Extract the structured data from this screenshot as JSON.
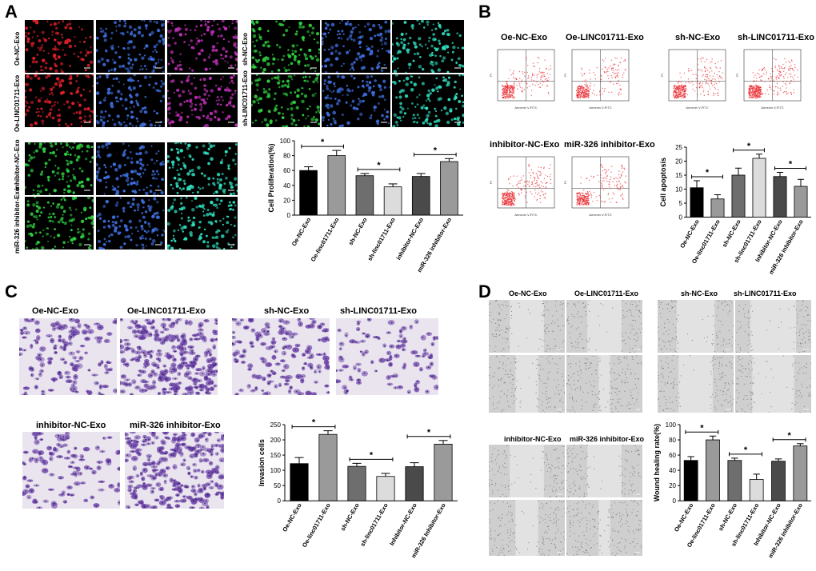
{
  "panels": {
    "A": {
      "letter": "A",
      "row_labels_left": [
        "Oe-NC-Exo",
        "Oe-LINC01711-Exo"
      ],
      "row_labels_right": [
        "sh-NC-Exo",
        "sh-LINC01711-Exo"
      ],
      "row_labels_bottom": [
        "inhibitor-NC-Exo",
        "miR-326 inhibitor-Exo"
      ]
    },
    "B": {
      "letter": "B",
      "titles_top": [
        "Oe-NC-Exo",
        "Oe-LINC01711-Exo",
        "sh-NC-Exo",
        "sh-LINC01711-Exo"
      ],
      "titles_bottom": [
        "inhibitor-NC-Exo",
        "miR-326 inhibitor-Exo"
      ],
      "flow_axis_x": "Annexin V-FITC",
      "flow_axis_y": "PI"
    },
    "C": {
      "letter": "C",
      "titles_top": [
        "Oe-NC-Exo",
        "Oe-LINC01711-Exo",
        "sh-NC-Exo",
        "sh-LINC01711-Exo"
      ],
      "titles_bottom": [
        "inhibitor-NC-Exo",
        "miR-326 inhibitor-Exo"
      ]
    },
    "D": {
      "letter": "D",
      "titles_top_left": [
        "Oe-NC-Exo",
        "Oe-LINC01711-Exo"
      ],
      "titles_top_right": [
        "sh-NC-Exo",
        "sh-LINC01711-Exo"
      ],
      "titles_bottom": [
        "inhibitor-NC-Exo",
        "miR-326 inhibitor-Exo"
      ]
    }
  },
  "colors": {
    "bar_black": "#000000",
    "bar_gray": "#9a9a9a",
    "bar_dark": "#6e6e6e",
    "bar_light": "#dcdcdc",
    "bar_mid": "#4a4a4a"
  },
  "chart_data": [
    {
      "type": "bar",
      "panel": "A",
      "ylabel": "Cell Proliferation(%)",
      "categories": [
        "Oe-NC-Exo",
        "Oe-linc01711-Exo",
        "sh-NC-Exo",
        "sh-linc01711-Exo",
        "inhibitor-NC-Exo",
        "miR-326 inhibitor-Exo"
      ],
      "values": [
        60,
        80,
        53,
        38,
        52,
        72
      ],
      "errors": [
        5,
        7,
        3,
        4,
        4,
        4
      ],
      "ylim": [
        0,
        100
      ],
      "yticks": [
        0,
        20,
        40,
        60,
        80,
        100
      ],
      "significance": [
        {
          "pair": [
            0,
            1
          ],
          "label": "*"
        },
        {
          "pair": [
            2,
            3
          ],
          "label": "*"
        },
        {
          "pair": [
            4,
            5
          ],
          "label": "*"
        }
      ]
    },
    {
      "type": "bar",
      "panel": "B",
      "ylabel": "Cell apoptosis",
      "categories": [
        "Oe-NC-Exo",
        "Oe-linc01711-Exo",
        "sh-NC-Exo",
        "sh-linc01711-Exo",
        "Inhibitor-NC-Exo",
        "miR-326 inhibitor-Exo"
      ],
      "values": [
        10.5,
        6.5,
        15,
        21,
        14.5,
        11
      ],
      "errors": [
        2.5,
        1.5,
        2.5,
        1.5,
        1.5,
        2.5
      ],
      "ylim": [
        0,
        25
      ],
      "yticks": [
        0,
        5,
        10,
        15,
        20,
        25
      ],
      "significance": [
        {
          "pair": [
            0,
            1
          ],
          "label": "*"
        },
        {
          "pair": [
            2,
            3
          ],
          "label": "*"
        },
        {
          "pair": [
            4,
            5
          ],
          "label": "*"
        }
      ]
    },
    {
      "type": "bar",
      "panel": "C",
      "ylabel": "Invasion cells",
      "categories": [
        "Oe-NC-Exo",
        "Oe-linc01711-Exo",
        "sh-NC-Exo",
        "sh-linc01711-Exo",
        "Inhibitor-NC-Exo",
        "miR-326 Inhibitor-Exo"
      ],
      "values": [
        122,
        218,
        113,
        80,
        112,
        186
      ],
      "errors": [
        20,
        12,
        10,
        10,
        13,
        12
      ],
      "ylim": [
        0,
        250
      ],
      "yticks": [
        0,
        50,
        100,
        150,
        200,
        250
      ],
      "significance": [
        {
          "pair": [
            0,
            1
          ],
          "label": "*"
        },
        {
          "pair": [
            2,
            3
          ],
          "label": "*"
        },
        {
          "pair": [
            4,
            5
          ],
          "label": "*"
        }
      ]
    },
    {
      "type": "bar",
      "panel": "D",
      "ylabel": "Wound healing rate(%)",
      "categories": [
        "Oe-NC-Exo",
        "Oe-linc01711-Exo",
        "sh-NC-Exo",
        "sh-linc01711-Exo",
        "Inhibitor-NC-Exo",
        "miR-326 inhibitor-Exo"
      ],
      "values": [
        53,
        80,
        53,
        28,
        52,
        72
      ],
      "errors": [
        5,
        5,
        3,
        7,
        3,
        3
      ],
      "ylim": [
        0,
        100
      ],
      "yticks": [
        0,
        20,
        40,
        60,
        80,
        100
      ],
      "significance": [
        {
          "pair": [
            0,
            1
          ],
          "label": "*"
        },
        {
          "pair": [
            2,
            3
          ],
          "label": "*"
        },
        {
          "pair": [
            4,
            5
          ],
          "label": "*"
        }
      ]
    }
  ]
}
